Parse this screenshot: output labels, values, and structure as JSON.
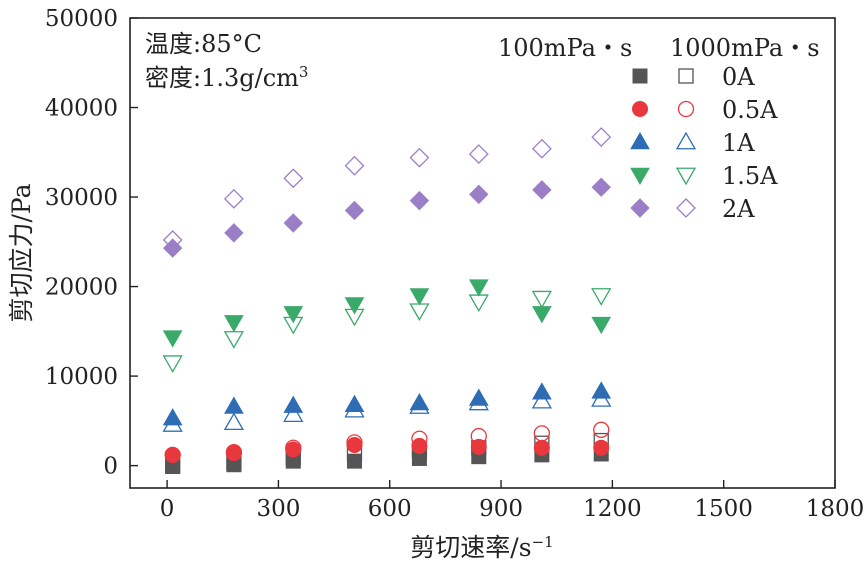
{
  "chart_data": {
    "type": "scatter",
    "xlabel": "剪切速率/s",
    "xlabel_sup": "−1",
    "ylabel": "剪切应力/Pa",
    "xlim": [
      -100,
      1800
    ],
    "ylim": [
      -2500,
      50000
    ],
    "xticks": [
      "0",
      "300",
      "600",
      "900",
      "1200",
      "1500",
      "1800"
    ],
    "yticks": [
      "0",
      "10000",
      "20000",
      "30000",
      "40000",
      "50000"
    ],
    "annotations": {
      "temperature": "温度:85°C",
      "density": "密度:1.3g/cm",
      "density_sup": "3"
    },
    "legend_headers": [
      "100mPa・s",
      "1000mPa・s"
    ],
    "x": [
      15,
      180,
      340,
      505,
      680,
      840,
      1010,
      1170
    ],
    "series": [
      {
        "name": "0A",
        "color": "#555555",
        "marker": "square",
        "filled": [
          -100,
          100,
          500,
          500,
          800,
          1000,
          1200,
          1300
        ],
        "hollow": [
          0,
          300,
          900,
          1300,
          1700,
          2000,
          2500,
          2800
        ]
      },
      {
        "name": "0.5A",
        "color": "#e8383d",
        "marker": "circle",
        "filled": [
          1200,
          1400,
          1800,
          2300,
          2200,
          2100,
          2000,
          2000
        ],
        "hollow": [
          1200,
          1500,
          2000,
          2600,
          3000,
          3300,
          3600,
          4000
        ]
      },
      {
        "name": "1A",
        "color": "#2e6db4",
        "marker": "triangle-up",
        "filled": [
          5300,
          6600,
          6700,
          6800,
          7000,
          7500,
          8200,
          8300
        ],
        "hollow": [
          4600,
          4800,
          5700,
          6200,
          6600,
          7000,
          7200,
          7400
        ]
      },
      {
        "name": "1.5A",
        "color": "#3aaa6a",
        "marker": "triangle-down",
        "filled": [
          14300,
          16000,
          17000,
          18000,
          19000,
          20000,
          17000,
          15800
        ],
        "hollow": [
          11500,
          14200,
          15800,
          16700,
          17300,
          18300,
          18700,
          19000
        ]
      },
      {
        "name": "2A",
        "color": "#9a7fc7",
        "marker": "diamond",
        "filled": [
          24300,
          26000,
          27100,
          28500,
          29600,
          30300,
          30800,
          31100
        ],
        "hollow": [
          25200,
          29800,
          32100,
          33500,
          34400,
          34800,
          35400,
          36700
        ]
      }
    ]
  }
}
